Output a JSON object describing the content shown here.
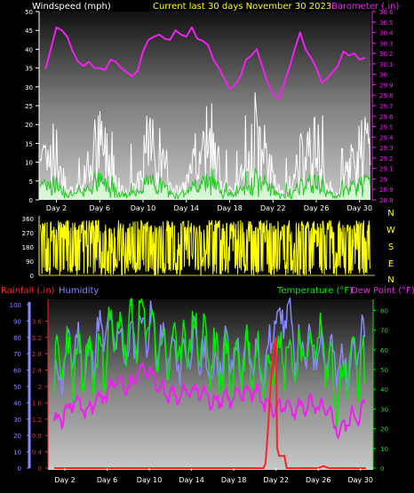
{
  "colors": {
    "wind_axis": "#ffffff",
    "wind_gust": "#ffffff",
    "wind_avg": "#22cc22",
    "wind_fill": "#d9ffd9",
    "barometer": "#ee22ee",
    "direction": "#ffff00",
    "dir_labels": "#ffff00",
    "rain": "#ff2222",
    "humidity": "#8888ff",
    "temperature": "#00ee00",
    "dewpoint": "#ee22ee",
    "title": "#ffff00"
  },
  "chart_data": [
    {
      "type": "line",
      "title": "Current last 30 days November 30 2023",
      "y_left_label": "Windspeed (mph)",
      "y_right_label": "Barometer (.in)",
      "y_left_ticks": [
        "0",
        "5",
        "10",
        "15",
        "20",
        "25",
        "30",
        "35",
        "40",
        "45",
        "50"
      ],
      "y_right_ticks": [
        "28.8",
        "28.9",
        "29",
        "29.1",
        "29.2",
        "29.3",
        "29.4",
        "29.5",
        "29.6",
        "29.7",
        "29.8",
        "29.9",
        "30",
        "30.1",
        "30.2",
        "30.3",
        "30.4",
        "30.5",
        "30.6"
      ],
      "x_ticks": [
        "Day 2",
        "Day 6",
        "Day 10",
        "Day 14",
        "Day 18",
        "Day 22",
        "Day 26",
        "Day 30"
      ],
      "ylim_left": [
        0,
        50
      ],
      "ylim_right": [
        28.8,
        30.6
      ],
      "series": [
        {
          "name": "Barometer",
          "axis": "right",
          "x": [
            1,
            1.5,
            2,
            2.5,
            3,
            3.5,
            4,
            4.5,
            5,
            5.5,
            6,
            6.5,
            7,
            7.5,
            8,
            8.5,
            9,
            9.5,
            10,
            10.5,
            11,
            11.5,
            12,
            12.5,
            13,
            13.5,
            14,
            14.5,
            15,
            15.5,
            16,
            16.5,
            17,
            17.5,
            18,
            18.5,
            19,
            19.5,
            20,
            20.5,
            21,
            21.5,
            22,
            22.5,
            23,
            23.5,
            24,
            24.5,
            25,
            25.5,
            26,
            26.5,
            27,
            27.5,
            28,
            28.5,
            29,
            29.5,
            30,
            30.5
          ],
          "values": [
            30.05,
            30.25,
            30.45,
            30.42,
            30.36,
            30.22,
            30.12,
            30.08,
            30.12,
            30.06,
            30.06,
            30.04,
            30.14,
            30.12,
            30.06,
            30.02,
            29.98,
            30.03,
            30.22,
            30.33,
            30.36,
            30.38,
            30.34,
            30.33,
            30.42,
            30.38,
            30.36,
            30.45,
            30.34,
            30.32,
            30.28,
            30.14,
            30.06,
            29.96,
            29.86,
            29.9,
            29.98,
            30.14,
            30.18,
            30.24,
            30.08,
            29.92,
            29.82,
            29.76,
            29.9,
            30.06,
            30.24,
            30.4,
            30.24,
            30.16,
            30.06,
            29.92,
            29.96,
            30.02,
            30.08,
            30.22,
            30.18,
            30.2,
            30.14,
            30.16
          ]
        }
      ]
    },
    {
      "type": "scatter",
      "y_left_ticks": [
        "0",
        "90",
        "180",
        "270",
        "360"
      ],
      "y_right_labels": [
        "N",
        "W",
        "S",
        "E",
        "N"
      ],
      "ylim": [
        0,
        360
      ]
    },
    {
      "type": "line",
      "y_left_label_rain": "Rainfall (.in)",
      "y_left_label_humidity": "Humidity",
      "y_right_label_temp": "Temperature (°F)",
      "y_right_label_dew": "Dew Point (°F)",
      "humidity_ticks": [
        "0",
        "10",
        "20",
        "30",
        "40",
        "50",
        "60",
        "70",
        "80",
        "90",
        "100"
      ],
      "rain_ticks": [
        "0",
        "0.4",
        "0.8",
        "1.2",
        "1.6",
        "2",
        "2.4",
        "2.8",
        "3.2",
        "3.6"
      ],
      "temp_ticks": [
        "0",
        "10",
        "20",
        "30",
        "40",
        "50",
        "60",
        "70",
        "80"
      ],
      "x_ticks": [
        "Day 2",
        "Day 6",
        "Day 10",
        "Day 14",
        "Day 18",
        "Day 22",
        "Day 26",
        "Day 30"
      ],
      "ylim_humidity": [
        0,
        100
      ],
      "ylim_rain": [
        0,
        4
      ],
      "ylim_temp": [
        0,
        82
      ],
      "series": [
        {
          "name": "Rainfall",
          "axis": "rain",
          "x": [
            1,
            20.8,
            21.0,
            21.2,
            21.4,
            21.6,
            21.8,
            22.0,
            22.1,
            22.3,
            22.8,
            23.0,
            26.0,
            26.5,
            27.0,
            30.5
          ],
          "values": [
            0,
            0,
            0.1,
            0.8,
            1.6,
            2.4,
            3.0,
            3.2,
            0.5,
            0.3,
            0.3,
            0,
            0,
            0.05,
            0,
            0
          ]
        },
        {
          "name": "Temperature",
          "axis": "temp",
          "x": [
            1,
            2,
            3,
            4,
            5,
            6,
            7,
            8,
            9,
            10,
            11,
            12,
            13,
            14,
            15,
            16,
            17,
            18,
            19,
            20,
            21,
            22,
            23,
            24,
            25,
            26,
            27,
            28,
            29,
            30,
            30.5
          ],
          "values": [
            45,
            60,
            50,
            55,
            52,
            62,
            70,
            65,
            72,
            75,
            60,
            58,
            62,
            68,
            65,
            55,
            52,
            50,
            58,
            55,
            50,
            62,
            58,
            55,
            60,
            65,
            55,
            35,
            55,
            50,
            45
          ]
        },
        {
          "name": "Dew Point",
          "axis": "temp",
          "x": [
            1,
            2,
            3,
            4,
            5,
            6,
            7,
            8,
            9,
            10,
            11,
            12,
            13,
            14,
            15,
            16,
            17,
            18,
            19,
            20,
            21,
            22,
            23,
            24,
            25,
            26,
            27,
            28,
            29,
            30,
            30.5
          ],
          "values": [
            22,
            28,
            35,
            28,
            35,
            38,
            45,
            40,
            50,
            48,
            40,
            38,
            36,
            40,
            38,
            34,
            36,
            35,
            38,
            40,
            32,
            30,
            32,
            30,
            32,
            30,
            28,
            18,
            25,
            28,
            30
          ]
        },
        {
          "name": "Humidity",
          "axis": "humidity",
          "x": [
            1,
            2,
            3,
            4,
            5,
            6,
            7,
            8,
            9,
            10,
            11,
            12,
            13,
            14,
            15,
            16,
            17,
            18,
            19,
            20,
            21,
            22,
            23,
            24,
            25,
            26,
            27,
            28,
            29,
            30,
            30.5
          ],
          "values": [
            50,
            65,
            78,
            60,
            80,
            85,
            80,
            72,
            85,
            88,
            74,
            70,
            65,
            76,
            68,
            58,
            72,
            68,
            66,
            70,
            60,
            94,
            95,
            70,
            72,
            75,
            70,
            60,
            68,
            75,
            80
          ]
        }
      ]
    }
  ]
}
